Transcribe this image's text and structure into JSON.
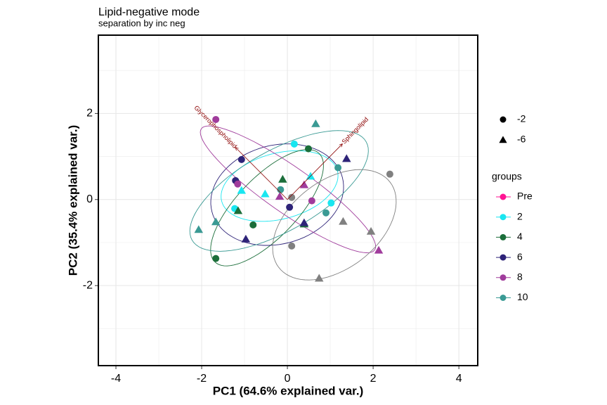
{
  "chart_data": {
    "type": "pca-biplot",
    "title": "Lipid-negative mode",
    "subtitle": "separation by inc neg",
    "x_label": "PC1 (64.6% explained var.)",
    "y_label": "PC2 (35.4% explained var.)",
    "xlim": [
      -4.41,
      4.44
    ],
    "ylim": [
      -3.86,
      3.82
    ],
    "xticks": [
      -4,
      -2,
      0,
      2,
      4
    ],
    "yticks": [
      -2,
      0,
      2
    ],
    "grid": true,
    "ellipse_prob": 0.68,
    "shape_legend": [
      {
        "label": "-2",
        "marker": "circle"
      },
      {
        "label": "-6",
        "marker": "triangle"
      }
    ],
    "legend_title": "groups",
    "series": [
      {
        "name": "Pre",
        "color": "#ff1493",
        "x": [],
        "y": [],
        "shape": []
      },
      {
        "name": "2",
        "color": "#19e6f0",
        "x": [
          0.16,
          0.54,
          -0.52,
          -1.07,
          -1.23,
          1.02
        ],
        "y": [
          1.29,
          0.54,
          0.13,
          0.21,
          -0.21,
          -0.08
        ],
        "shape": [
          "-2",
          "-6",
          "-6",
          "-6",
          "-2",
          "-2"
        ]
      },
      {
        "name": "4",
        "color": "#1b6e3a",
        "x": [
          0.49,
          -0.11,
          -1.15,
          -0.8,
          -1.67,
          0.39
        ],
        "y": [
          1.18,
          0.47,
          -0.26,
          -0.59,
          -1.37,
          -0.57
        ],
        "shape": [
          "-2",
          "-6",
          "-6",
          "-2",
          "-2",
          "-6"
        ]
      },
      {
        "name": "6",
        "color": "#2e2378",
        "x": [
          -1.07,
          -1.21,
          1.38,
          0.05,
          0.39,
          -0.97
        ],
        "y": [
          0.93,
          0.44,
          0.95,
          -0.18,
          -0.54,
          -0.92
        ],
        "shape": [
          "-2",
          "-2",
          "-6",
          "-2",
          "-6",
          "-6"
        ]
      },
      {
        "name": "8",
        "color": "#a03c9c",
        "x": [
          -1.67,
          -1.16,
          0.39,
          -0.18,
          0.57,
          2.13
        ],
        "y": [
          1.86,
          0.36,
          0.34,
          0.07,
          -0.03,
          -1.18
        ],
        "shape": [
          "-2",
          "-2",
          "-6",
          "-6",
          "-2",
          "-6"
        ]
      },
      {
        "name": "10",
        "color": "#3a9a94",
        "x": [
          0.66,
          1.18,
          -0.16,
          -1.67,
          -2.07,
          0.9
        ],
        "y": [
          1.76,
          0.74,
          0.23,
          -0.52,
          -0.7,
          -0.31
        ],
        "shape": [
          "-6",
          "-2",
          "-2",
          "-6",
          "-6",
          "-2"
        ]
      },
      {
        "name": null,
        "color": "#808080",
        "x": [
          2.39,
          0.1,
          0.1,
          1.3,
          1.95,
          0.74
        ],
        "y": [
          0.59,
          0.05,
          -1.08,
          -0.51,
          -0.74,
          -1.83
        ],
        "shape": [
          "-2",
          "-2",
          "-2",
          "-6",
          "-6",
          "-6"
        ]
      }
    ],
    "arrow_color": "#8b0000",
    "arrows": [
      {
        "label": "Glycerophospholipid",
        "x": -1.21,
        "y": 1.21
      },
      {
        "label": "Sphingolipid",
        "x": 1.28,
        "y": 1.29
      }
    ]
  }
}
